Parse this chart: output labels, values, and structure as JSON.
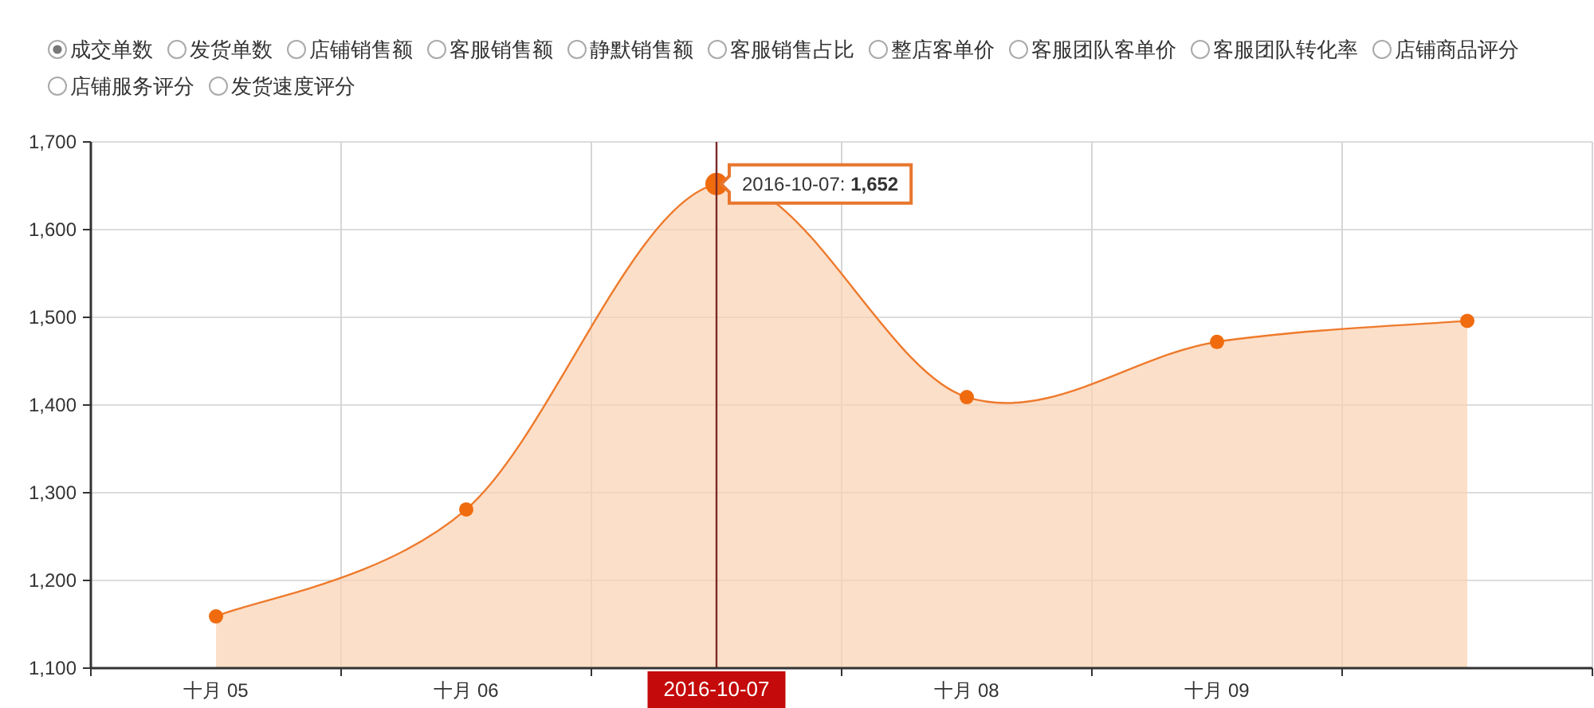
{
  "chart_data": {
    "type": "area",
    "categories": [
      "十月 05",
      "十月 06",
      "2016-10-07",
      "十月 08",
      "十月 09",
      null
    ],
    "series": [
      {
        "name": "成交单数",
        "color": "#ee7a2c",
        "values": [
          1159,
          1281,
          1652,
          1409,
          1472,
          1496
        ]
      }
    ],
    "ylim": [
      1100,
      1700
    ],
    "yticks": [
      {
        "value": 1100,
        "label": "1,100"
      },
      {
        "value": 1200,
        "label": "1,200"
      },
      {
        "value": 1300,
        "label": "1,300"
      },
      {
        "value": 1400,
        "label": "1,400"
      },
      {
        "value": 1500,
        "label": "1,500"
      },
      {
        "value": 1600,
        "label": "1,600"
      },
      {
        "value": 1700,
        "label": "1,700"
      }
    ],
    "grid": true,
    "marker": "circle",
    "legend": "top left",
    "ref_lines": [
      {
        "axis": "x",
        "value": "2016-10-07",
        "color": "#7a2a2a"
      }
    ],
    "annotations": [
      "发货单数",
      "店铺销售额",
      "客服销售额",
      "静默销售额",
      "客服销售占比",
      "整店客单价",
      "客服团队客单价",
      "客服团队转化率",
      "店铺商品评分",
      "店铺服务评分",
      "发货速度评分",
      {
        "text": "2016-10-07: 1,652",
        "x": "2016-10-07",
        "y": 1652
      }
    ]
  }
}
